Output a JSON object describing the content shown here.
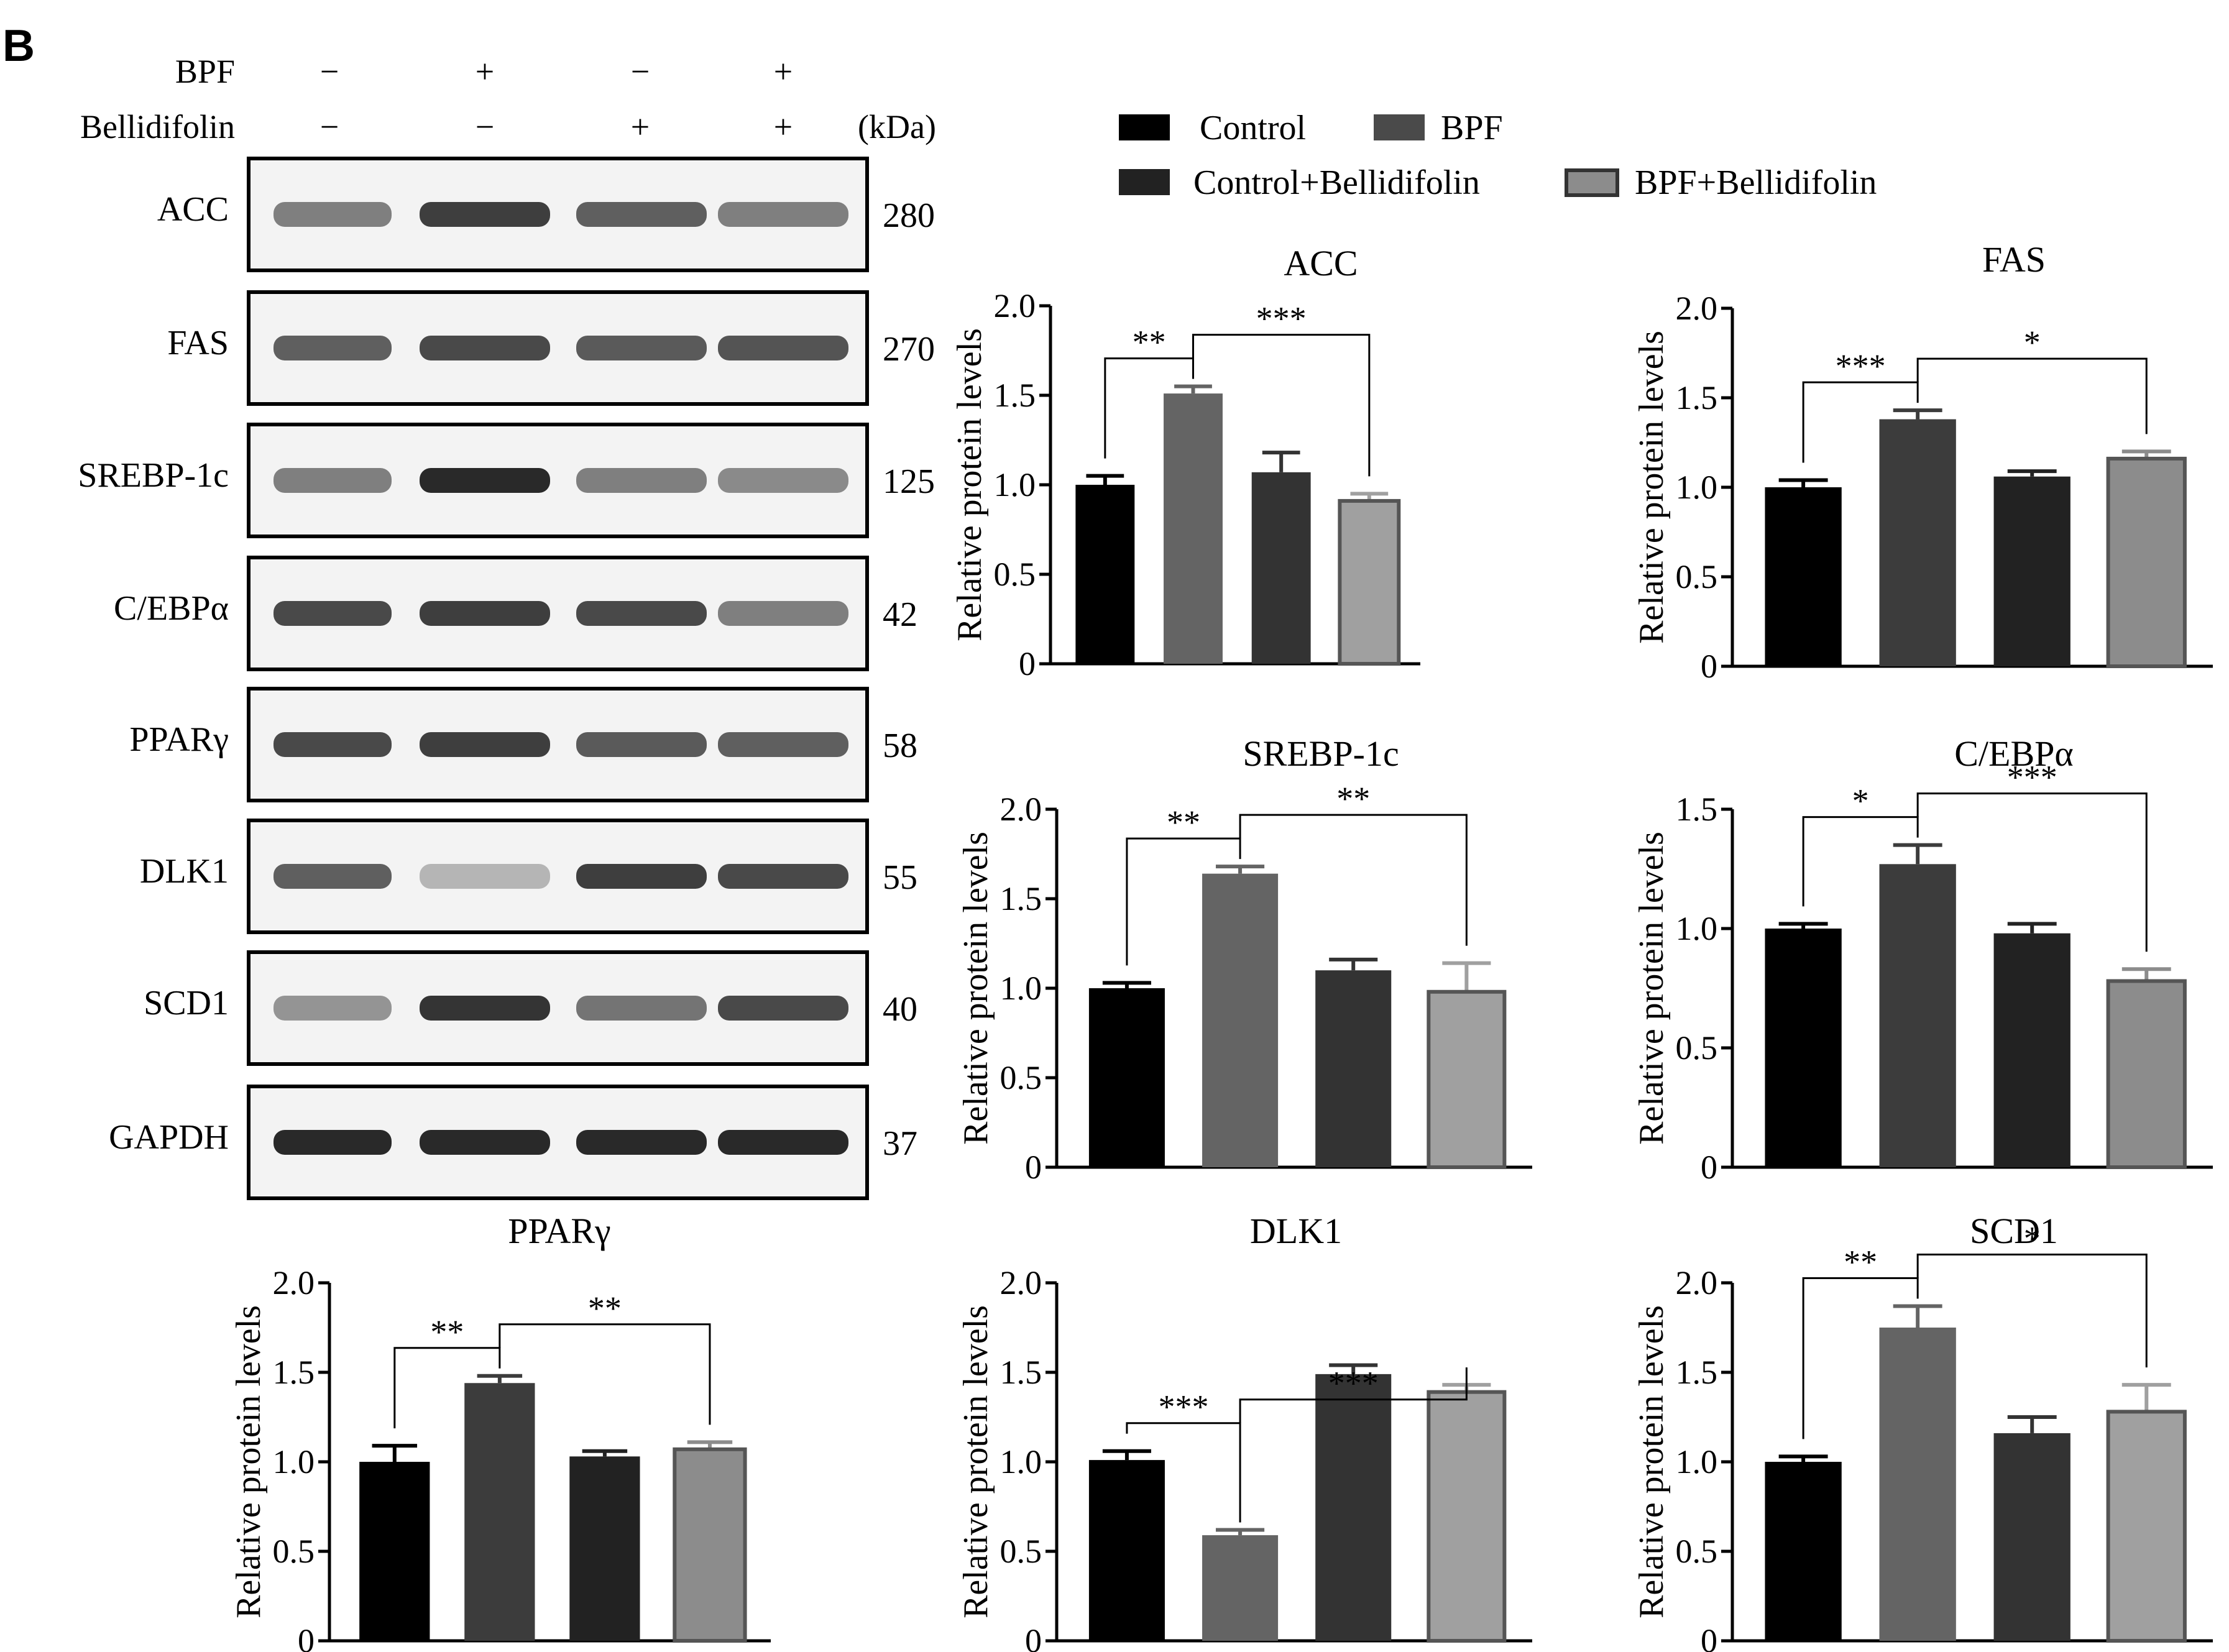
{
  "panel_label": "B",
  "blot": {
    "conditions": [
      {
        "label": "BPF",
        "signs": [
          "−",
          "+",
          "−",
          "+"
        ]
      },
      {
        "label": "Bellidifolin",
        "signs": [
          "−",
          "−",
          "+",
          "+"
        ]
      }
    ],
    "unit_label": "(kDa)",
    "rows": [
      {
        "name": "ACC",
        "kda": "280",
        "intensity": [
          0.55,
          0.85,
          0.7,
          0.55
        ]
      },
      {
        "name": "FAS",
        "kda": "270",
        "intensity": [
          0.7,
          0.8,
          0.72,
          0.75
        ]
      },
      {
        "name": "SREBP-1c",
        "kda": "125",
        "intensity": [
          0.55,
          0.95,
          0.55,
          0.5
        ]
      },
      {
        "name": "C/EBPα",
        "kda": "42",
        "intensity": [
          0.8,
          0.85,
          0.8,
          0.55
        ]
      },
      {
        "name": "PPARγ",
        "kda": "58",
        "intensity": [
          0.8,
          0.85,
          0.72,
          0.7
        ]
      },
      {
        "name": "DLK1",
        "kda": "55",
        "intensity": [
          0.7,
          0.3,
          0.85,
          0.8
        ]
      },
      {
        "name": "SCD1",
        "kda": "40",
        "intensity": [
          0.45,
          0.9,
          0.6,
          0.8
        ]
      },
      {
        "name": "GAPDH",
        "kda": "37",
        "intensity": [
          0.95,
          0.95,
          0.95,
          0.95
        ]
      }
    ]
  },
  "legend": {
    "entries": [
      {
        "label": "Control",
        "color": "#000000"
      },
      {
        "label": "BPF",
        "color": "#4a4a4a"
      },
      {
        "label": "Control+Bellidifolin",
        "color": "#222222"
      },
      {
        "label": "BPF+Bellidifolin",
        "color": "#8c8c8c"
      }
    ]
  },
  "chart_data": [
    {
      "type": "bar",
      "title": "ACC",
      "ylabel": "Relative protein levels",
      "ylim": [
        0,
        2.0
      ],
      "yticks": [
        0,
        0.5,
        1.0,
        1.5,
        2.0
      ],
      "tick_labels": [
        "0",
        "0.5",
        "1.0",
        "1.5",
        "2.0"
      ],
      "categories": [
        "Control",
        "BPF",
        "Control+Bellidifolin",
        "BPF+Bellidifolin"
      ],
      "values": [
        1.0,
        1.51,
        1.07,
        0.91
      ],
      "errors": [
        0.05,
        0.04,
        0.11,
        0.04
      ],
      "colors": [
        "#000000",
        "#646464",
        "#333333",
        "#a0a0a0"
      ],
      "significance": [
        {
          "from": 0,
          "to": 1,
          "label": "**"
        },
        {
          "from": 1,
          "to": 3,
          "label": "***"
        }
      ]
    },
    {
      "type": "bar",
      "title": "FAS",
      "ylabel": "Relative protein levels",
      "ylim": [
        0,
        2.0
      ],
      "yticks": [
        0,
        0.5,
        1.0,
        1.5,
        2.0
      ],
      "tick_labels": [
        "0",
        "0.5",
        "1.0",
        "1.5",
        "2.0"
      ],
      "categories": [
        "Control",
        "BPF",
        "Control+Bellidifolin",
        "BPF+Bellidifolin"
      ],
      "values": [
        1.0,
        1.38,
        1.06,
        1.16
      ],
      "errors": [
        0.04,
        0.05,
        0.03,
        0.04
      ],
      "colors": [
        "#000000",
        "#3c3c3c",
        "#222222",
        "#8c8c8c"
      ],
      "significance": [
        {
          "from": 0,
          "to": 1,
          "label": "***"
        },
        {
          "from": 1,
          "to": 3,
          "label": "*"
        }
      ]
    },
    {
      "type": "bar",
      "title": "SREBP-1c",
      "ylabel": "Relative protein levels",
      "ylim": [
        0,
        2.0
      ],
      "yticks": [
        0,
        0.5,
        1.0,
        1.5,
        2.0
      ],
      "tick_labels": [
        "0",
        "0.5",
        "1.0",
        "1.5",
        "2.0"
      ],
      "categories": [
        "Control",
        "BPF",
        "Control+Bellidifolin",
        "BPF+Bellidifolin"
      ],
      "values": [
        1.0,
        1.64,
        1.1,
        0.98
      ],
      "errors": [
        0.03,
        0.04,
        0.06,
        0.16
      ],
      "colors": [
        "#000000",
        "#646464",
        "#333333",
        "#a0a0a0"
      ],
      "significance": [
        {
          "from": 0,
          "to": 1,
          "label": "**"
        },
        {
          "from": 1,
          "to": 3,
          "label": "**"
        }
      ]
    },
    {
      "type": "bar",
      "title": "C/EBPα",
      "ylabel": "Relative protein levels",
      "ylim": [
        0,
        1.5
      ],
      "yticks": [
        0,
        0.5,
        1.0,
        1.5
      ],
      "tick_labels": [
        "0",
        "0.5",
        "1.0",
        "1.5"
      ],
      "categories": [
        "Control",
        "BPF",
        "Control+Bellidifolin",
        "BPF+Bellidifolin"
      ],
      "values": [
        1.0,
        1.27,
        0.98,
        0.78
      ],
      "errors": [
        0.02,
        0.08,
        0.04,
        0.05
      ],
      "colors": [
        "#000000",
        "#3c3c3c",
        "#222222",
        "#8c8c8c"
      ],
      "significance": [
        {
          "from": 0,
          "to": 1,
          "label": "*"
        },
        {
          "from": 1,
          "to": 3,
          "label": "***"
        }
      ]
    },
    {
      "type": "bar",
      "title": "PPARγ",
      "ylabel": "Relative protein levels",
      "ylim": [
        0,
        2.0
      ],
      "yticks": [
        0,
        0.5,
        1.0,
        1.5,
        2.0
      ],
      "tick_labels": [
        "0",
        "0.5",
        "1.0",
        "1.5",
        "2.0"
      ],
      "categories": [
        "Control",
        "BPF",
        "Control+Bellidifolin",
        "BPF+Bellidifolin"
      ],
      "values": [
        1.0,
        1.44,
        1.03,
        1.07
      ],
      "errors": [
        0.09,
        0.04,
        0.03,
        0.04
      ],
      "colors": [
        "#000000",
        "#3c3c3c",
        "#222222",
        "#8c8c8c"
      ],
      "significance": [
        {
          "from": 0,
          "to": 1,
          "label": "**"
        },
        {
          "from": 1,
          "to": 3,
          "label": "**"
        }
      ]
    },
    {
      "type": "bar",
      "title": "DLK1",
      "ylabel": "Relative protein levels",
      "ylim": [
        0,
        2.0
      ],
      "yticks": [
        0,
        0.5,
        1.0,
        1.5,
        2.0
      ],
      "tick_labels": [
        "0",
        "0.5",
        "1.0",
        "1.5",
        "2.0"
      ],
      "categories": [
        "Control",
        "BPF",
        "Control+Bellidifolin",
        "BPF+Bellidifolin"
      ],
      "values": [
        1.01,
        0.59,
        1.49,
        1.39
      ],
      "errors": [
        0.05,
        0.03,
        0.05,
        0.04
      ],
      "colors": [
        "#000000",
        "#646464",
        "#333333",
        "#a0a0a0"
      ],
      "significance": [
        {
          "from": 0,
          "to": 1,
          "label": "***"
        },
        {
          "from": 1,
          "to": 3,
          "label": "***"
        }
      ]
    },
    {
      "type": "bar",
      "title": "SCD1",
      "ylabel": "Relative protein levels",
      "ylim": [
        0,
        2.0
      ],
      "yticks": [
        0,
        0.5,
        1.0,
        1.5,
        2.0
      ],
      "tick_labels": [
        "0",
        "0.5",
        "1.0",
        "1.5",
        "2.0"
      ],
      "categories": [
        "Control",
        "BPF",
        "Control+Bellidifolin",
        "BPF+Bellidifolin"
      ],
      "values": [
        1.0,
        1.75,
        1.16,
        1.28
      ],
      "errors": [
        0.03,
        0.12,
        0.09,
        0.15
      ],
      "colors": [
        "#000000",
        "#646464",
        "#333333",
        "#a0a0a0"
      ],
      "significance": [
        {
          "from": 0,
          "to": 1,
          "label": "**"
        },
        {
          "from": 1,
          "to": 3,
          "label": "*"
        }
      ]
    }
  ]
}
